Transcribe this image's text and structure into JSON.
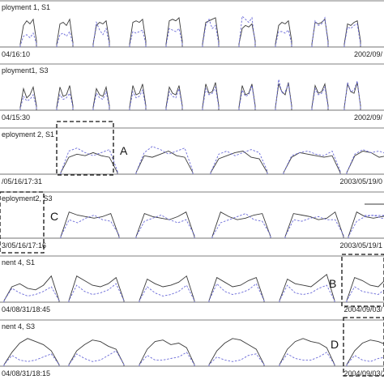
{
  "chart_data": {
    "type": "line",
    "legend": "right",
    "series_styles": [
      {
        "dash": "solid",
        "color": "#3a3a3a"
      },
      {
        "dash": "dashed",
        "color": "#6a6ad8"
      }
    ],
    "panels": [
      {
        "title": "ployment 1, S1",
        "start_label": "04/16:10",
        "end_label": "2002/09/",
        "episodes": [
          {
            "solid": [
              0.1,
              0.7,
              0.85,
              0.75,
              0.9,
              0.2
            ],
            "dashed": [
              0.05,
              0.35,
              0.4,
              0.3,
              0.45,
              0.1
            ]
          },
          {
            "solid": [
              0.1,
              0.75,
              0.8,
              0.7,
              0.9,
              0.15
            ],
            "dashed": [
              0.05,
              0.4,
              0.45,
              0.35,
              0.5,
              0.1
            ]
          },
          {
            "solid": [
              0.1,
              0.7,
              0.8,
              0.75,
              0.85,
              0.2
            ],
            "dashed": [
              0.05,
              0.8,
              0.55,
              0.4,
              0.6,
              0.1
            ]
          },
          {
            "solid": [
              0.1,
              0.8,
              0.85,
              0.8,
              0.9,
              0.2
            ],
            "dashed": [
              0.05,
              0.5,
              0.45,
              0.5,
              0.55,
              0.1
            ]
          },
          {
            "solid": [
              0.1,
              0.85,
              0.9,
              0.85,
              0.95,
              0.2
            ],
            "dashed": [
              0.05,
              0.6,
              0.55,
              0.5,
              0.6,
              0.1
            ]
          },
          {
            "solid": [
              0.1,
              0.8,
              0.85,
              0.9,
              0.95,
              0.2
            ],
            "dashed": [
              0.05,
              0.7,
              0.9,
              0.6,
              0.7,
              0.1
            ]
          },
          {
            "solid": [
              0.1,
              0.6,
              0.7,
              0.65,
              0.75,
              0.2
            ],
            "dashed": [
              0.05,
              1.0,
              0.9,
              0.8,
              0.95,
              0.1
            ]
          },
          {
            "solid": [
              0.1,
              0.7,
              0.8,
              0.75,
              0.85,
              0.2
            ],
            "dashed": [
              0.05,
              0.5,
              0.5,
              0.45,
              0.55,
              0.1
            ]
          },
          {
            "solid": [
              0.1,
              0.8,
              0.75,
              0.8,
              0.9,
              0.2
            ],
            "dashed": [
              0.05,
              0.85,
              0.7,
              0.75,
              0.95,
              0.1
            ]
          },
          {
            "solid": [
              0.1,
              0.75,
              0.7,
              0.8,
              0.85,
              0.2
            ],
            "dashed": [
              0.05,
              0.65,
              0.6,
              0.7,
              0.75,
              0.1
            ]
          }
        ]
      },
      {
        "title": "ployment1, S3",
        "start_label": "04/15:30",
        "end_label": "2002/09/",
        "episodes": [
          {
            "solid": [
              0.1,
              0.7,
              0.4,
              0.5,
              0.75,
              0.15
            ],
            "dashed": [
              0.05,
              0.45,
              0.3,
              0.35,
              0.5,
              0.1
            ]
          },
          {
            "solid": [
              0.1,
              0.75,
              0.45,
              0.5,
              0.8,
              0.15
            ],
            "dashed": [
              0.05,
              0.5,
              0.35,
              0.4,
              0.55,
              0.1
            ]
          },
          {
            "solid": [
              0.1,
              0.7,
              0.5,
              0.45,
              0.75,
              0.15
            ],
            "dashed": [
              0.05,
              0.55,
              0.4,
              0.35,
              0.6,
              0.1
            ]
          },
          {
            "solid": [
              0.1,
              0.8,
              0.5,
              0.55,
              0.85,
              0.15
            ],
            "dashed": [
              0.05,
              0.6,
              0.4,
              0.45,
              0.65,
              0.1
            ]
          },
          {
            "solid": [
              0.1,
              0.75,
              0.55,
              0.5,
              0.8,
              0.15
            ],
            "dashed": [
              0.05,
              0.6,
              0.45,
              0.4,
              0.7,
              0.1
            ]
          },
          {
            "solid": [
              0.1,
              0.85,
              0.55,
              0.6,
              0.9,
              0.15
            ],
            "dashed": [
              0.05,
              0.7,
              0.5,
              0.55,
              0.75,
              0.1
            ]
          },
          {
            "solid": [
              0.1,
              0.8,
              0.5,
              0.55,
              0.85,
              0.15
            ],
            "dashed": [
              0.05,
              0.65,
              0.45,
              0.5,
              0.8,
              0.1
            ]
          },
          {
            "solid": [
              0.1,
              0.85,
              0.6,
              0.5,
              0.9,
              0.15
            ],
            "dashed": [
              0.05,
              1.0,
              0.55,
              0.6,
              0.85,
              0.1
            ]
          },
          {
            "solid": [
              0.1,
              0.8,
              0.55,
              0.6,
              0.85,
              0.15
            ],
            "dashed": [
              0.05,
              0.7,
              0.5,
              0.55,
              0.75,
              0.1
            ]
          },
          {
            "solid": [
              0.1,
              0.85,
              0.6,
              0.55,
              0.9,
              0.15
            ],
            "dashed": [
              0.05,
              0.9,
              0.6,
              0.65,
              0.95,
              0.1
            ]
          }
        ]
      },
      {
        "title": "eployment 2, S1",
        "start_label": "/05/16/17:31",
        "end_label": "2003/05/19/0",
        "episodes": [
          {
            "solid": [
              0.05,
              0.55,
              0.65,
              0.6,
              0.7,
              0.6,
              0.55,
              0.05
            ],
            "dashed": [
              0.05,
              0.75,
              0.85,
              0.7,
              0.6,
              0.7,
              0.8,
              0.1
            ]
          },
          {
            "solid": [
              0.05,
              0.6,
              0.55,
              0.65,
              0.75,
              0.6,
              0.55,
              0.05
            ],
            "dashed": [
              0.05,
              0.7,
              0.9,
              0.8,
              0.65,
              0.75,
              0.85,
              0.1
            ]
          },
          {
            "solid": [
              0.05,
              0.5,
              0.6,
              0.7,
              0.75,
              0.55,
              0.5,
              0.05
            ],
            "dashed": [
              0.05,
              0.65,
              0.75,
              0.6,
              0.7,
              0.8,
              0.7,
              0.1
            ]
          },
          {
            "solid": [
              0.05,
              0.55,
              0.7,
              0.65,
              0.6,
              0.55,
              0.6,
              0.05
            ],
            "dashed": [
              0.05,
              0.6,
              0.7,
              0.75,
              0.65,
              0.6,
              0.75,
              0.1
            ]
          },
          {
            "solid": [
              0.05,
              0.6,
              0.75,
              0.7,
              0.55,
              0.6,
              0.65,
              0.05
            ],
            "dashed": [
              0.05,
              0.65,
              0.8,
              0.7,
              0.75,
              0.65,
              0.7,
              0.1
            ]
          }
        ]
      },
      {
        "title": "eployment2, S3",
        "start_label": "3/05/16/17:16",
        "end_label": "2003/05/19/1",
        "episodes": [
          {
            "solid": [
              0.05,
              0.85,
              0.75,
              0.7,
              0.65,
              0.7,
              0.8,
              0.05
            ],
            "dashed": [
              0.05,
              0.6,
              0.5,
              0.65,
              0.75,
              0.6,
              0.55,
              0.1
            ]
          },
          {
            "solid": [
              0.05,
              0.8,
              0.7,
              0.65,
              0.6,
              0.7,
              0.85,
              0.05
            ],
            "dashed": [
              0.05,
              0.55,
              0.65,
              0.75,
              0.6,
              0.5,
              0.6,
              0.1
            ]
          },
          {
            "solid": [
              0.05,
              0.85,
              0.7,
              0.6,
              0.65,
              0.75,
              0.8,
              0.05
            ],
            "dashed": [
              0.05,
              0.5,
              0.6,
              0.7,
              0.8,
              0.6,
              0.55,
              0.1
            ]
          },
          {
            "solid": [
              0.05,
              0.8,
              0.75,
              0.7,
              0.6,
              0.65,
              0.85,
              0.05
            ],
            "dashed": [
              0.05,
              0.6,
              0.55,
              0.65,
              0.7,
              0.6,
              0.6,
              0.1
            ]
          },
          {
            "solid": [
              0.05,
              0.85,
              0.7,
              0.65,
              0.7,
              0.75,
              0.8,
              0.05
            ],
            "dashed": [
              0.05,
              0.55,
              0.7,
              0.75,
              0.65,
              0.6,
              0.65,
              0.1
            ]
          }
        ]
      },
      {
        "title": "nent 4, S1",
        "start_label": "04/08/31/18:45",
        "end_label": "2004/09/03/",
        "episodes": [
          {
            "solid": [
              0.05,
              0.5,
              0.6,
              0.45,
              0.4,
              0.55,
              0.85,
              0.05
            ],
            "dashed": [
              0.05,
              0.45,
              0.3,
              0.2,
              0.25,
              0.35,
              0.5,
              0.05
            ]
          },
          {
            "solid": [
              0.05,
              0.85,
              0.7,
              0.55,
              0.5,
              0.6,
              0.8,
              0.05
            ],
            "dashed": [
              0.05,
              0.55,
              0.35,
              0.25,
              0.3,
              0.4,
              0.6,
              0.05
            ]
          },
          {
            "solid": [
              0.05,
              0.75,
              0.6,
              0.5,
              0.55,
              0.65,
              0.85,
              0.05
            ],
            "dashed": [
              0.05,
              0.5,
              0.3,
              0.2,
              0.25,
              0.35,
              0.55,
              0.05
            ]
          },
          {
            "solid": [
              0.05,
              0.8,
              0.65,
              0.5,
              0.55,
              0.7,
              0.8,
              0.05
            ],
            "dashed": [
              0.05,
              0.6,
              0.35,
              0.25,
              0.3,
              0.4,
              0.6,
              0.05
            ]
          },
          {
            "solid": [
              0.05,
              0.75,
              0.6,
              0.55,
              0.5,
              0.7,
              0.9,
              0.05
            ],
            "dashed": [
              0.05,
              0.55,
              0.3,
              0.25,
              0.3,
              0.45,
              0.55,
              0.05
            ]
          },
          {
            "solid": [
              0.05,
              0.8,
              0.7,
              0.55,
              0.5,
              0.75,
              0.85,
              0.05
            ],
            "dashed": [
              0.05,
              0.5,
              0.35,
              0.3,
              0.25,
              0.45,
              0.6,
              0.05
            ]
          }
        ]
      },
      {
        "title": "nent 4, S3",
        "start_label": "04/08/31/18:15",
        "end_label": "2004/09/03/",
        "episodes": [
          {
            "solid": [
              0.05,
              0.45,
              0.75,
              0.9,
              0.8,
              0.7,
              0.5,
              0.05
            ],
            "dashed": [
              0.05,
              0.35,
              0.2,
              0.15,
              0.2,
              0.3,
              0.4,
              0.05
            ]
          },
          {
            "solid": [
              0.05,
              0.5,
              0.7,
              0.85,
              0.8,
              0.65,
              0.55,
              0.05
            ],
            "dashed": [
              0.05,
              0.4,
              0.25,
              0.15,
              0.2,
              0.35,
              0.5,
              0.05
            ]
          },
          {
            "solid": [
              0.05,
              0.55,
              0.8,
              0.85,
              0.7,
              0.75,
              0.6,
              0.05
            ],
            "dashed": [
              0.05,
              0.35,
              0.2,
              0.2,
              0.25,
              0.3,
              0.45,
              0.05
            ]
          },
          {
            "solid": [
              0.05,
              0.5,
              0.75,
              0.9,
              0.85,
              0.7,
              0.55,
              0.05
            ],
            "dashed": [
              0.05,
              0.3,
              0.2,
              0.15,
              0.2,
              0.35,
              0.4,
              0.05
            ]
          },
          {
            "solid": [
              0.05,
              0.55,
              0.8,
              0.9,
              0.8,
              0.75,
              0.6,
              0.05
            ],
            "dashed": [
              0.05,
              0.4,
              0.25,
              0.2,
              0.2,
              0.3,
              0.45,
              0.05
            ]
          },
          {
            "solid": [
              0.05,
              0.5,
              0.75,
              0.85,
              0.8,
              0.7,
              0.55,
              0.05
            ],
            "dashed": [
              0.05,
              0.35,
              0.2,
              0.15,
              0.25,
              0.3,
              0.5,
              0.05
            ]
          }
        ]
      }
    ],
    "annotations": [
      {
        "label": "A",
        "panel": 2,
        "episode": 0
      },
      {
        "label": "B",
        "panel": 4,
        "episode": 6
      },
      {
        "label": "C",
        "panel": 3,
        "episode": -1
      },
      {
        "label": "D",
        "panel": 5,
        "episode": 6
      }
    ]
  }
}
